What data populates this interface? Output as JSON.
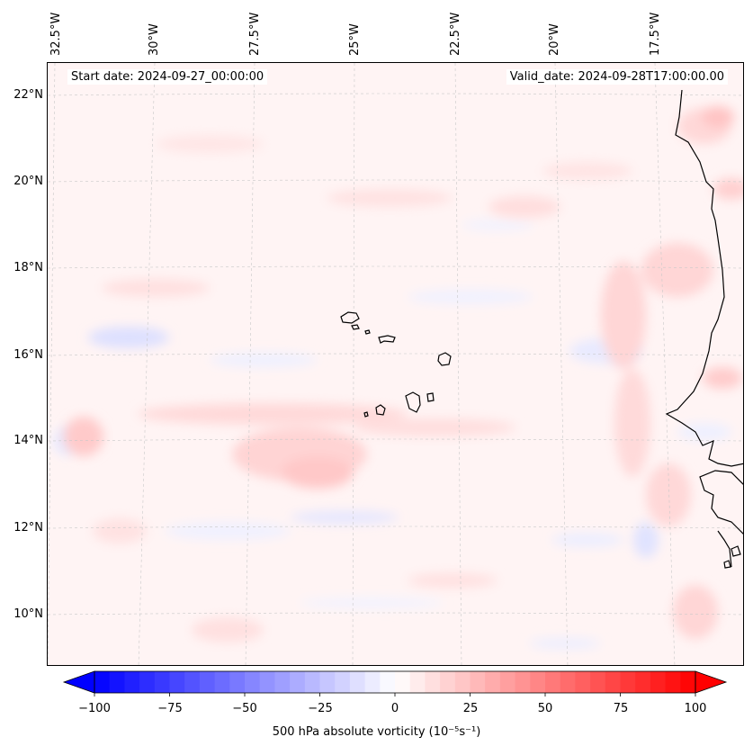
{
  "header": {
    "start_date": "Start date: 2024-09-27_00:00:00",
    "valid_date": "Valid_date: 2024-09-28T17:00:00.00"
  },
  "axes": {
    "lat_labels": [
      "22°N",
      "20°N",
      "18°N",
      "16°N",
      "14°N",
      "12°N",
      "10°N"
    ],
    "lon_labels": [
      "32.5°W",
      "30°W",
      "27.5°W",
      "25°W",
      "22.5°W",
      "20°W",
      "17.5°W"
    ]
  },
  "map": {
    "field": "500 hPa absolute vorticity",
    "features": [
      "Cape Verde islands",
      "West African coastline",
      "lat-lon gridlines"
    ]
  },
  "colorbar": {
    "label": "500 hPa absolute vorticity (10⁻⁵s⁻¹)",
    "ticks": [
      "−100",
      "−75",
      "−50",
      "−25",
      "0",
      "25",
      "50",
      "75",
      "100"
    ],
    "min": -100,
    "max": 100,
    "levels": 40,
    "colormap": "bwr",
    "low_color": "#0000ff",
    "mid_color": "#ffffff",
    "high_color": "#ff0000"
  }
}
